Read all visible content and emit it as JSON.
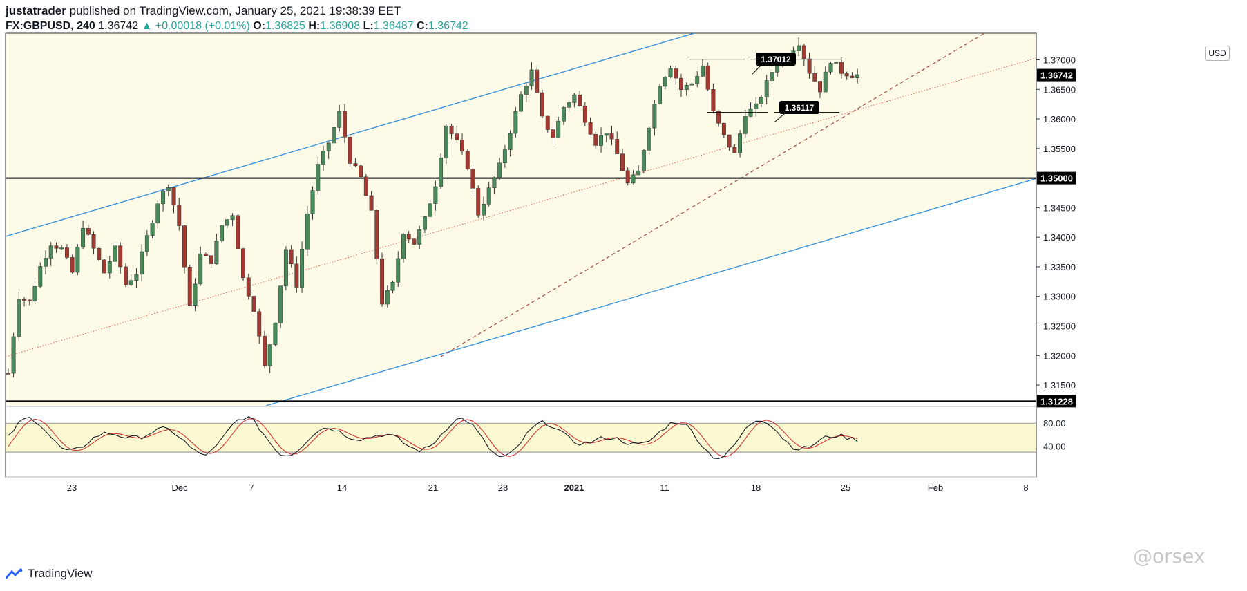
{
  "header": {
    "author": "justatrader",
    "published_text": "published on TradingView.com, January 25, 2021 19:38:39 EET",
    "symbol_interval": "FX:GBPUSD, 240",
    "last": "1.36742",
    "change": "▲ +0.00018 (+0.01%)",
    "o_label": "O:",
    "o": "1.36825",
    "h_label": "H:",
    "h": "1.36908",
    "l_label": "L:",
    "l": "1.36487",
    "c_label": "C:",
    "c": "1.36742"
  },
  "currency_button": "USD",
  "footer": {
    "brand": "TradingView",
    "watermark": "@orsex"
  },
  "colors": {
    "up": "#4a8a5a",
    "down": "#a23a32",
    "channel": "#2f8ddb",
    "band": "#fdfbe8",
    "oscband": "#fbf9d2",
    "stoch_k": "#131722",
    "stoch_d": "#d03030"
  },
  "chart_data": {
    "type": "candlestick",
    "symbol": "FX:GBPUSD",
    "interval": "240",
    "y_scale": {
      "min": 1.3115,
      "max": 1.3745,
      "ticks": [
        "1.37000",
        "1.36500",
        "1.36000",
        "1.35500",
        "1.35000",
        "1.34500",
        "1.34000",
        "1.33500",
        "1.33000",
        "1.32500",
        "1.32000",
        "1.31500"
      ]
    },
    "x_ticks": [
      "23",
      "Dec",
      "7",
      "14",
      "21",
      "28",
      "2021",
      "11",
      "18",
      "25",
      "Feb",
      "8"
    ],
    "price_labels": {
      "last": "1.36742",
      "support_high": "1.35000",
      "support_low": "1.31228"
    },
    "horizontal_levels": [
      1.35,
      1.31228
    ],
    "annotations": [
      "1.37012",
      "1.36117"
    ],
    "anchor_points": [
      [
        0,
        1.317
      ],
      [
        2,
        1.33
      ],
      [
        4,
        1.329
      ],
      [
        6,
        1.335
      ],
      [
        8,
        1.339
      ],
      [
        10,
        1.338
      ],
      [
        12,
        1.334
      ],
      [
        14,
        1.342
      ],
      [
        16,
        1.338
      ],
      [
        18,
        1.334
      ],
      [
        20,
        1.338
      ],
      [
        22,
        1.332
      ],
      [
        24,
        1.334
      ],
      [
        26,
        1.34
      ],
      [
        28,
        1.346
      ],
      [
        30,
        1.349
      ],
      [
        32,
        1.342
      ],
      [
        34,
        1.328
      ],
      [
        36,
        1.337
      ],
      [
        38,
        1.336
      ],
      [
        40,
        1.342
      ],
      [
        42,
        1.344
      ],
      [
        44,
        1.333
      ],
      [
        46,
        1.328
      ],
      [
        48,
        1.318
      ],
      [
        50,
        1.326
      ],
      [
        52,
        1.338
      ],
      [
        54,
        1.332
      ],
      [
        56,
        1.344
      ],
      [
        58,
        1.352
      ],
      [
        60,
        1.356
      ],
      [
        62,
        1.361
      ],
      [
        64,
        1.353
      ],
      [
        66,
        1.35
      ],
      [
        68,
        1.344
      ],
      [
        70,
        1.329
      ],
      [
        72,
        1.332
      ],
      [
        74,
        1.341
      ],
      [
        76,
        1.339
      ],
      [
        78,
        1.343
      ],
      [
        80,
        1.349
      ],
      [
        82,
        1.359
      ],
      [
        84,
        1.356
      ],
      [
        86,
        1.352
      ],
      [
        88,
        1.344
      ],
      [
        90,
        1.348
      ],
      [
        92,
        1.352
      ],
      [
        94,
        1.358
      ],
      [
        96,
        1.364
      ],
      [
        98,
        1.368
      ],
      [
        100,
        1.36
      ],
      [
        102,
        1.357
      ],
      [
        104,
        1.362
      ],
      [
        106,
        1.364
      ],
      [
        108,
        1.36
      ],
      [
        110,
        1.356
      ],
      [
        112,
        1.358
      ],
      [
        114,
        1.354
      ],
      [
        116,
        1.349
      ],
      [
        118,
        1.351
      ],
      [
        120,
        1.359
      ],
      [
        122,
        1.366
      ],
      [
        124,
        1.369
      ],
      [
        126,
        1.365
      ],
      [
        128,
        1.366
      ],
      [
        130,
        1.369
      ],
      [
        132,
        1.361
      ],
      [
        134,
        1.357
      ],
      [
        136,
        1.354
      ],
      [
        138,
        1.361
      ],
      [
        140,
        1.362
      ],
      [
        142,
        1.366
      ],
      [
        144,
        1.37
      ],
      [
        146,
        1.371
      ],
      [
        148,
        1.373
      ],
      [
        150,
        1.368
      ],
      [
        152,
        1.365
      ],
      [
        154,
        1.37
      ],
      [
        156,
        1.368
      ],
      [
        158,
        1.36742
      ]
    ],
    "stochastic": {
      "levels": [
        "80.00",
        "40.00"
      ]
    }
  }
}
